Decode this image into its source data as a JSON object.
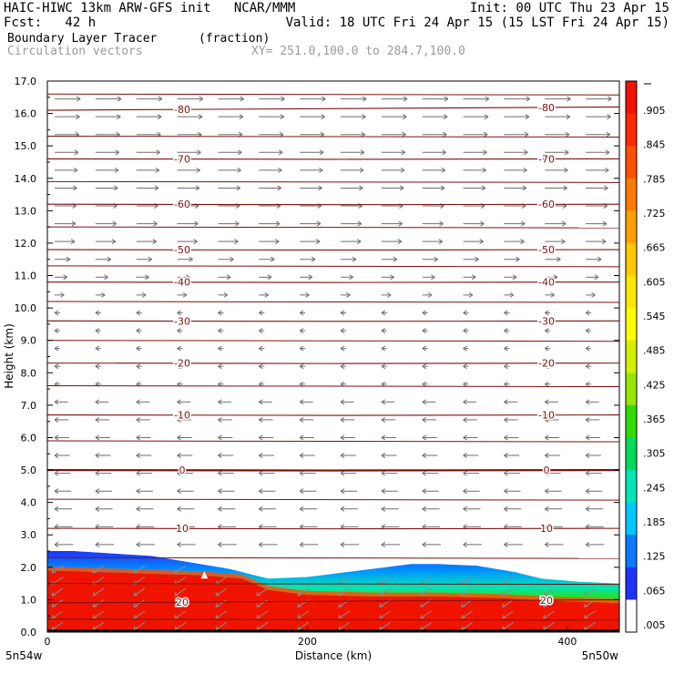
{
  "header": {
    "line1_left": "HAIC-HIWC 13km ARW-GFS init   NCAR/MMM",
    "line1_right": "Init: 00 UTC Thu 23 Apr 15",
    "line2_left": "Fcst:   42 h",
    "line2_right": "Valid: 18 UTC Fri 24 Apr 15 (15 LST Fri 24 Apr 15)",
    "line3_left": "Boundary Layer Tracer",
    "line3_mid": "(fraction)",
    "line4_left": "Circulation vectors",
    "line4_mid": "XY= 251.0,100.0 to 284.7,100.0"
  },
  "chart_data": {
    "type": "heatmap",
    "ylabel": "Height (km)",
    "xlabel": "Distance (km)",
    "xlim": [
      0,
      440
    ],
    "ylim": [
      0,
      17
    ],
    "y_ticks": [
      "0.0",
      "1.0",
      "2.0",
      "3.0",
      "4.0",
      "5.0",
      "6.0",
      "7.0",
      "8.0",
      "9.0",
      "10.0",
      "11.0",
      "12.0",
      "13.0",
      "14.0",
      "15.0",
      "16.0",
      "17.0"
    ],
    "x_ticks": [
      {
        "value": 0,
        "label": "0"
      },
      {
        "value": 200,
        "label": "200"
      },
      {
        "value": 400,
        "label": "400"
      }
    ],
    "x_end_labels": {
      "left": "5n54w",
      "right": "5n50w"
    },
    "colorbar_labels": [
      ".005",
      ".065",
      ".125",
      ".185",
      ".245",
      ".305",
      ".365",
      ".425",
      ".485",
      ".545",
      ".605",
      ".665",
      ".725",
      ".785",
      ".845",
      ".905"
    ],
    "colorbar_colors": [
      "#ffffff",
      "#1e32ff",
      "#0a78ff",
      "#00c8ff",
      "#00e6b4",
      "#00dc5a",
      "#32dc00",
      "#96e600",
      "#d2f000",
      "#ffff00",
      "#ffe600",
      "#ffc800",
      "#ffa000",
      "#ff7800",
      "#ff5000",
      "#ff2800",
      "#f01400"
    ],
    "temperature_contours": [
      {
        "label": "-80",
        "y_left": 16.1,
        "y_right": 16.2
      },
      {
        "label": "-70",
        "y_left": 14.6,
        "y_right": 14.6
      },
      {
        "label": "-60",
        "y_left": 13.2,
        "y_right": 13.2
      },
      {
        "label": "-50",
        "y_left": 11.8,
        "y_right": 11.8
      },
      {
        "label": "-40",
        "y_left": 10.8,
        "y_right": 10.8
      },
      {
        "label": "-30",
        "y_left": 9.6,
        "y_right": 9.6
      },
      {
        "label": "-20",
        "y_left": 8.3,
        "y_right": 8.3
      },
      {
        "label": "-10",
        "y_left": 6.7,
        "y_right": 6.7
      },
      {
        "label": "0",
        "y_left": 5.0,
        "y_right": 5.0
      },
      {
        "label": "10",
        "y_left": 3.2,
        "y_right": 3.2
      },
      {
        "label": "20",
        "y_left": 0.9,
        "y_right": 1.0
      }
    ],
    "tracer_top_km": [
      [
        0,
        2.5
      ],
      [
        20,
        2.5
      ],
      [
        40,
        2.45
      ],
      [
        80,
        2.35
      ],
      [
        110,
        2.15
      ],
      [
        140,
        1.95
      ],
      [
        170,
        1.65
      ],
      [
        200,
        1.7
      ],
      [
        230,
        1.85
      ],
      [
        260,
        2.0
      ],
      [
        280,
        2.1
      ],
      [
        300,
        2.1
      ],
      [
        330,
        2.05
      ],
      [
        360,
        1.85
      ],
      [
        380,
        1.65
      ],
      [
        410,
        1.55
      ],
      [
        440,
        1.5
      ]
    ],
    "tracer_red_top_km": [
      [
        0,
        1.9
      ],
      [
        40,
        1.85
      ],
      [
        80,
        1.8
      ],
      [
        120,
        1.75
      ],
      [
        150,
        1.65
      ],
      [
        170,
        1.3
      ],
      [
        200,
        1.15
      ],
      [
        250,
        1.1
      ],
      [
        300,
        1.1
      ],
      [
        350,
        1.05
      ],
      [
        400,
        0.95
      ],
      [
        440,
        0.9
      ]
    ]
  }
}
